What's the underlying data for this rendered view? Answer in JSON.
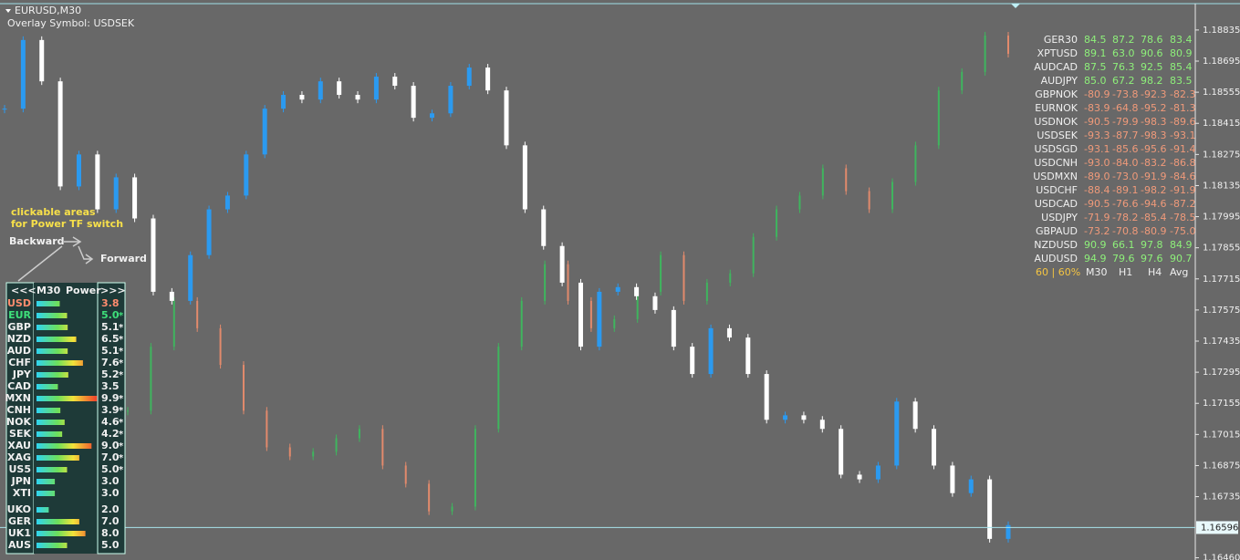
{
  "header": {
    "symbol": "EURUSD,M30",
    "overlay": "Overlay Symbol: USDSEK"
  },
  "price_axis": {
    "ylim": [
      1.1645,
      1.1897
    ],
    "ticks": [
      1.18835,
      1.18695,
      1.18555,
      1.18415,
      1.18275,
      1.18135,
      1.17995,
      1.17855,
      1.17715,
      1.17575,
      1.17435,
      1.17295,
      1.17155,
      1.17015,
      1.16875,
      1.16735,
      {
        "value": 1.1646,
        "label": "1.16460"
      }
    ],
    "current": 1.16596
  },
  "main_series": {
    "closes": [
      1.18481,
      1.1879,
      1.18604,
      1.18131,
      1.18275,
      1.18028,
      1.18172,
      1.17987,
      1.17657,
      1.17616,
      1.17822,
      1.18028,
      1.1809,
      1.18275,
      1.18481,
      1.18543,
      1.18522,
      1.18604,
      1.18543,
      1.18522,
      1.18625,
      1.18584,
      1.1844,
      1.1846,
      1.18584,
      1.18666,
      1.18563,
      1.18316,
      1.18028,
      1.17863,
      1.17698,
      1.1741,
      1.17657,
      1.17678,
      1.17637,
      1.17575,
      1.1741,
      1.17287,
      1.17493,
      1.17451,
      1.17287,
      1.17081,
      1.17101,
      1.17081,
      1.1704,
      1.16834,
      1.16813,
      1.16875,
      1.17163,
      1.1704,
      1.16875,
      1.16751,
      1.16813,
      1.16545,
      1.16607
    ]
  },
  "overlay_series": {
    "closes": [
      1.17122,
      1.1741,
      1.17616,
      1.17493,
      1.17328,
      1.17122,
      1.16957,
      1.16916,
      1.16937,
      1.16998,
      1.1704,
      1.16875,
      1.16793,
      1.16669,
      1.1669,
      1.1704,
      1.1741,
      1.17616,
      1.17781,
      1.17616,
      1.17493,
      1.17534,
      1.17657,
      1.17822,
      1.17616,
      1.17698,
      1.1774,
      1.17904,
      1.18028,
      1.1809,
      1.18213,
      1.1811,
      1.18028,
      1.18151,
      1.18316,
      1.18563,
      1.18646,
      1.1881,
      1.18728
    ]
  },
  "strength_table": {
    "rows": [
      {
        "symbol": "GER30",
        "values": [
          "84.5",
          "87.2",
          "78.6",
          "83.4"
        ]
      },
      {
        "symbol": "XPTUSD",
        "values": [
          "89.1",
          "63.0",
          "90.6",
          "80.9"
        ]
      },
      {
        "symbol": "AUDCAD",
        "values": [
          "87.5",
          "76.3",
          "92.5",
          "85.4"
        ]
      },
      {
        "symbol": "AUDJPY",
        "values": [
          "85.0",
          "67.2",
          "98.2",
          "83.5"
        ]
      },
      {
        "symbol": "GBPNOK",
        "values": [
          "-80.9",
          "-73.8",
          "-92.3",
          "-82.3"
        ]
      },
      {
        "symbol": "EURNOK",
        "values": [
          "-83.9",
          "-64.8",
          "-95.2",
          "-81.3"
        ]
      },
      {
        "symbol": "USDNOK",
        "values": [
          "-90.5",
          "-79.9",
          "-98.3",
          "-89.6"
        ]
      },
      {
        "symbol": "USDSEK",
        "values": [
          "-93.3",
          "-87.7",
          "-98.3",
          "-93.1"
        ]
      },
      {
        "symbol": "USDSGD",
        "values": [
          "-93.1",
          "-85.6",
          "-95.6",
          "-91.4"
        ]
      },
      {
        "symbol": "USDCNH",
        "values": [
          "-93.0",
          "-84.0",
          "-83.2",
          "-86.8"
        ]
      },
      {
        "symbol": "USDMXN",
        "values": [
          "-89.0",
          "-73.0",
          "-91.9",
          "-84.6"
        ]
      },
      {
        "symbol": "USDCHF",
        "values": [
          "-88.4",
          "-89.1",
          "-98.2",
          "-91.9"
        ]
      },
      {
        "symbol": "USDCAD",
        "values": [
          "-90.5",
          "-76.6",
          "-94.6",
          "-87.2"
        ]
      },
      {
        "symbol": "USDJPY",
        "values": [
          "-71.9",
          "-78.2",
          "-85.4",
          "-78.5"
        ]
      },
      {
        "symbol": "GBPAUD",
        "values": [
          "-73.2",
          "-70.8",
          "-80.9",
          "-75.0"
        ]
      },
      {
        "symbol": "NZDUSD",
        "values": [
          "90.9",
          "66.1",
          "97.8",
          "84.9"
        ]
      },
      {
        "symbol": "AUDUSD",
        "values": [
          "94.9",
          "79.6",
          "97.6",
          "90.7"
        ]
      }
    ],
    "footer": "60 | 60%",
    "columns": [
      "M30",
      "H1",
      "H4",
      "Avg"
    ]
  },
  "power_panel": {
    "back": "<<<",
    "timeframe": "M30",
    "title": "Power",
    "forward": ">>>",
    "groups": [
      [
        {
          "currency": "USD",
          "value": "3.8",
          "color": "#ff8c6e"
        },
        {
          "currency": "EUR",
          "value": "5.0",
          "flag": "*",
          "color": "#3ee07a"
        },
        {
          "currency": "GBP",
          "value": "5.1",
          "flag": "*"
        },
        {
          "currency": "NZD",
          "value": "6.5",
          "flag": "*"
        },
        {
          "currency": "AUD",
          "value": "5.1",
          "flag": "*"
        },
        {
          "currency": "CHF",
          "value": "7.6",
          "flag": "*"
        },
        {
          "currency": "JPY",
          "value": "5.2",
          "flag": "*"
        },
        {
          "currency": "CAD",
          "value": "3.5"
        },
        {
          "currency": "MXN",
          "value": "9.9",
          "flag": "*"
        },
        {
          "currency": "CNH",
          "value": "3.9",
          "flag": "*"
        },
        {
          "currency": "NOK",
          "value": "4.6",
          "flag": "*"
        },
        {
          "currency": "SEK",
          "value": "4.2",
          "flag": "*"
        },
        {
          "currency": "XAU",
          "value": "9.0",
          "flag": "*"
        },
        {
          "currency": "XAG",
          "value": "7.0",
          "flag": "*"
        },
        {
          "currency": "US5",
          "value": "5.0",
          "flag": "*"
        },
        {
          "currency": "JPN",
          "value": "3.0"
        },
        {
          "currency": "XTI",
          "value": "3.0"
        }
      ],
      [
        {
          "currency": "UKO",
          "value": "2.0"
        },
        {
          "currency": "GER",
          "value": "7.0"
        },
        {
          "currency": "UK1",
          "value": "8.0"
        },
        {
          "currency": "AUS",
          "value": "5.0"
        }
      ]
    ]
  },
  "annotations": {
    "line1": "clickable areas",
    "line2": "for Power TF switch",
    "backward": "Backward",
    "forward": "Forward"
  }
}
